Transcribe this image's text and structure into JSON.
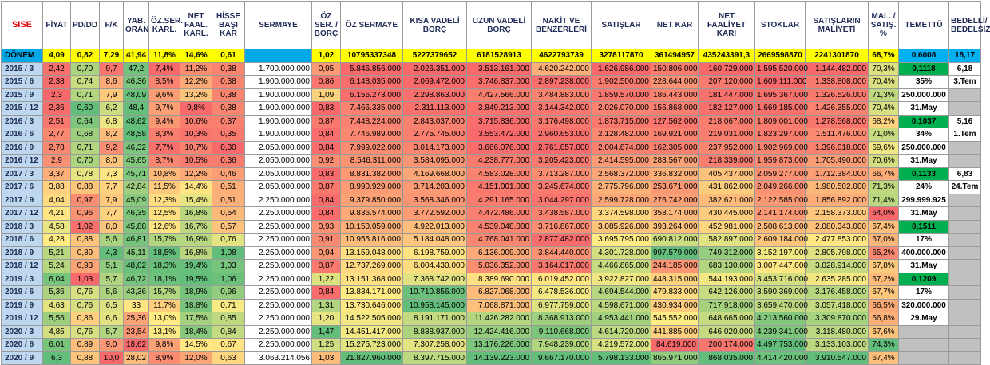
{
  "headers": [
    "SISE",
    "FİYAT",
    "PD/DD",
    "F/K",
    "YAB. ORAN",
    "ÖZ.SER. KARL.",
    "NET FAAL. KARL.",
    "HİSSE BAŞI KAR",
    "SERMAYE",
    "ÖZ SER. / BORÇ",
    "ÖZ SERMAYE",
    "KISA VADELİ BORÇ",
    "UZUN VADELİ BORÇ",
    "NAKİT VE BENZERLERİ",
    "SATIŞLAR",
    "NET KAR",
    "NET FAALİYET KARI",
    "STOKLAR",
    "SATIŞLARIN MALİYETİ",
    "MAL. / SATIŞ. %",
    "TEMETTÜ",
    "BEDELLİ/ BEDELSİZ"
  ],
  "donem": [
    "DÖNEM",
    "4,09",
    "0,82",
    "7,29",
    "41,94",
    "11,8%",
    "14,6%",
    "0,61",
    "",
    "1,02",
    "10795337348",
    "5227379652",
    "6181528913",
    "4622793739",
    "3278117870",
    "361494957",
    "435243391,3",
    "2669598870",
    "2241301870",
    "68,7%",
    "0,6008",
    "18,17"
  ],
  "rows": [
    [
      "2015 / 3",
      "2,42",
      "0,70",
      "9,7",
      "47,2",
      "7,4%",
      "11,2%",
      "0,38",
      "1.700.000.000",
      "0,95",
      "5.846.856.000",
      "2.026.351.000",
      "3.513.161.000",
      "4.620.242.000",
      "1.626.986.000",
      "150.806.000",
      "160.729.000",
      "1.595.520.000",
      "1.144.482.000",
      "70,3%",
      "0,1118",
      "6,18"
    ],
    [
      "2015 / 6",
      "2,38",
      "0,74",
      "8,6",
      "46,36",
      "8,5%",
      "12,2%",
      "0,38",
      "1.900.000.000",
      "0,86",
      "6.148.035.000",
      "2.069.472.000",
      "3.746.837.000",
      "2.897.238.000",
      "1.902.500.000",
      "228.644.000",
      "207.120.000",
      "1.609.111.000",
      "1.338.808.000",
      "70,4%",
      "35%",
      "3.Tem"
    ],
    [
      "2015 / 9",
      "2,3",
      "0,71",
      "7,9",
      "48,09",
      "9,6%",
      "13,2%",
      "0,38",
      "1.900.000.000",
      "1,09",
      "6.156.273.000",
      "2.298.863.000",
      "4.427.566.000",
      "3.484.883.000",
      "1.859.570.000",
      "186.443.000",
      "181.447.000",
      "1.695.367.000",
      "1.326.526.000",
      "71,3%",
      "250.000.000",
      ""
    ],
    [
      "2015 / 12",
      "2,36",
      "0,60",
      "6,2",
      "48,4",
      "9,7%",
      "9,8%",
      "0,38",
      "1.900.000.000",
      "0,83",
      "7.466.335.000",
      "2.311.113.000",
      "3.849.213.000",
      "3.144.342.000",
      "2.026.070.000",
      "156.868.000",
      "182.127.000",
      "1.669.185.000",
      "1.426.355.000",
      "70,4%",
      "31.May",
      ""
    ],
    [
      "2016 / 3",
      "2,51",
      "0,64",
      "6,8",
      "48,62",
      "9,4%",
      "10,6%",
      "0,37",
      "1.900.000.000",
      "0,87",
      "7.448.224.000",
      "2.843.037.000",
      "3.715.836.000",
      "3.176.498.000",
      "1.873.715.000",
      "127.562.000",
      "218.067.000",
      "1.809.001.000",
      "1.278.568.000",
      "68,2%",
      "0,1037",
      "5,16"
    ],
    [
      "2016 / 6",
      "2,77",
      "0,68",
      "8,2",
      "48,58",
      "8,3%",
      "10,3%",
      "0,35",
      "1.900.000.000",
      "0,84",
      "7.746.989.000",
      "2.775.745.000",
      "3.553.472.000",
      "2.960.653.000",
      "2.128.482.000",
      "169.921.000",
      "219.031.000",
      "1.823.297.000",
      "1.511.476.000",
      "71,0%",
      "34%",
      "1.Tem"
    ],
    [
      "2016 / 9",
      "2,78",
      "0,71",
      "9,2",
      "46,32",
      "7,7%",
      "10,7%",
      "0,30",
      "2.050.000.000",
      "0,84",
      "7.999.022.000",
      "3.014.173.000",
      "3.666.076.000",
      "2.761.057.000",
      "2.004.874.000",
      "162.305.000",
      "237.952.000",
      "1.902.969.000",
      "1.396.018.000",
      "69,6%",
      "250.000.000",
      ""
    ],
    [
      "2016 / 12",
      "2,9",
      "0,70",
      "8,0",
      "45,65",
      "8,7%",
      "10,5%",
      "0,36",
      "2.050.000.000",
      "0,92",
      "8.546.311.000",
      "3.584.095.000",
      "4.238.777.000",
      "3.205.423.000",
      "2.414.595.000",
      "283.567.000",
      "218.339.000",
      "1.959.873.000",
      "1.705.490.000",
      "70,6%",
      "31.May",
      ""
    ],
    [
      "2017 / 3",
      "3,37",
      "0,78",
      "7,3",
      "45,71",
      "10,8%",
      "12,2%",
      "0,46",
      "2.050.000.000",
      "0,83",
      "8.831.382.000",
      "4.169.668.000",
      "4.583.028.000",
      "3.713.287.000",
      "2.568.372.000",
      "336.832.000",
      "405.437.000",
      "2.059.277.000",
      "1.712.384.000",
      "66,7%",
      "0,1133",
      "6,83"
    ],
    [
      "2017 / 6",
      "3,88",
      "0,88",
      "7,7",
      "42,84",
      "11,5%",
      "14,4%",
      "0,51",
      "2.050.000.000",
      "0,87",
      "8.990.929.000",
      "3.714.203.000",
      "4.151.001.000",
      "3.245.674.000",
      "2.775.796.000",
      "253.671.000",
      "431.862.000",
      "2.049.266.000",
      "1.980.502.000",
      "71,3%",
      "24%",
      "24.Tem"
    ],
    [
      "2017 / 9",
      "4,04",
      "0,97",
      "7,9",
      "45,09",
      "12,3%",
      "15,4%",
      "0,51",
      "2.250.000.000",
      "0,84",
      "9.379.850.000",
      "3.568.346.000",
      "4.291.165.000",
      "3.044.297.000",
      "2.599.728.000",
      "276.742.000",
      "382.621.000",
      "2.122.585.000",
      "1.856.892.000",
      "71,4%",
      "299.999.925",
      ""
    ],
    [
      "2017 / 12",
      "4,21",
      "0,96",
      "7,7",
      "46,35",
      "12,5%",
      "16,8%",
      "0,54",
      "2.250.000.000",
      "0,84",
      "9.836.574.000",
      "3.772.592.000",
      "4.472.486.000",
      "3.438.587.000",
      "3.374.598.000",
      "358.174.000",
      "430.445.000",
      "2.141.174.000",
      "2.158.373.000",
      "64,0%",
      "31.May",
      ""
    ],
    [
      "2018 / 3",
      "4,58",
      "1,02",
      "8,0",
      "45,88",
      "12,6%",
      "16,7%",
      "0,57",
      "2.250.000.000",
      "0,93",
      "10.150.059.000",
      "4.922.013.000",
      "4.539.048.000",
      "3.716.867.000",
      "3.085.926.000",
      "393.264.000",
      "452.981.000",
      "2.508.613.000",
      "2.080.343.000",
      "67,4%",
      "0,1511",
      ""
    ],
    [
      "2018 / 6",
      "4,28",
      "0,88",
      "5,6",
      "46,81",
      "15,7%",
      "16,9%",
      "0,76",
      "2.250.000.000",
      "0,91",
      "10.955.816.000",
      "5.184.048.000",
      "4.768.041.000",
      "2.877.482.000",
      "3.695.795.000",
      "690.812.000",
      "582.897.000",
      "2.609.184.000",
      "2.477.853.000",
      "67,0%",
      "17%",
      ""
    ],
    [
      "2018 / 9",
      "5,21",
      "0,89",
      "4,3",
      "45,11",
      "18,5%",
      "16,8%",
      "1,08",
      "2.250.000.000",
      "0,94",
      "13.159.048.000",
      "6.198.759.000",
      "6.136.009.000",
      "3.844.440.000",
      "4.301.728.000",
      "997.579.000",
      "749.312.000",
      "3.152.197.000",
      "2.805.798.000",
      "65,2%",
      "400.000.000",
      ""
    ],
    [
      "2018 / 12",
      "5,24",
      "0,93",
      "5,1",
      "48,02",
      "18,3%",
      "19,4%",
      "1,03",
      "2.250.000.000",
      "0,87",
      "12.737.269.000",
      "6.004.430.000",
      "5.036.352.000",
      "3.164.017.000",
      "4.466.865.000",
      "244.185.000",
      "683.130.000",
      "3.007.447.000",
      "3.028.914.000",
      "67,8%",
      "31.May",
      ""
    ],
    [
      "2019 / 3",
      "6,04",
      "1,03",
      "5,7",
      "46,72",
      "18,1%",
      "19,5%",
      "1,06",
      "2.250.000.000",
      "1,22",
      "13.151.368.000",
      "7.368.742.000",
      "8.389.690.000",
      "6.019.452.000",
      "3.922.827.000",
      "448.315.000",
      "544.193.000",
      "3.453.716.000",
      "2.635.285.000",
      "67,2%",
      "0,1209",
      ""
    ],
    [
      "2019 / 6",
      "5,36",
      "0,76",
      "5,6",
      "43,36",
      "15,7%",
      "18,9%",
      "0,96",
      "2.250.000.000",
      "0,84",
      "13.834.171.000",
      "10.710.856.000",
      "6.827.068.000",
      "6.478.536.000",
      "4.694.544.000",
      "479.833.000",
      "642.126.000",
      "3.590.369.000",
      "3.176.458.000",
      "67,7%",
      "17%",
      ""
    ],
    [
      "2019 / 9",
      "4,63",
      "0,76",
      "6,5",
      "33",
      "11,7%",
      "18,8%",
      "0,71",
      "2.250.000.000",
      "1,31",
      "13.730.646.000",
      "10.958.145.000",
      "7.068.871.000",
      "6.977.759.000",
      "4.598.671.000",
      "430.934.000",
      "717.918.000",
      "3.659.470.000",
      "3.057.418.000",
      "66,5%",
      "320.000.000",
      ""
    ],
    [
      "2019 / 12",
      "5,56",
      "0,86",
      "6,6",
      "25,36",
      "13,0%",
      "17,5%",
      "0,85",
      "2.250.000.000",
      "1,20",
      "14.522.505.000",
      "8.191.171.000",
      "11.426.282.000",
      "8.368.913.000",
      "4.953.441.000",
      "545.552.000",
      "648.665.000",
      "4.213.560.000",
      "3.309.870.000",
      "66,8%",
      "29.May",
      ""
    ],
    [
      "2020 / 3",
      "4,85",
      "0,76",
      "5,7",
      "23,54",
      "13,1%",
      "18,4%",
      "0,84",
      "2.250.000.000",
      "1,47",
      "14.451.417.000",
      "8.838.937.000",
      "12.424.416.000",
      "9.110.668.000",
      "4.614.720.000",
      "441.885.000",
      "646.020.000",
      "4.239.341.000",
      "3.118.480.000",
      "67,6%",
      "",
      ""
    ],
    [
      "2020 / 6",
      "6,01",
      "0,89",
      "9,0",
      "18,62",
      "9,8%",
      "14,5%",
      "0,67",
      "2.250.000.000",
      "1,25",
      "15.275.723.000",
      "7.307.258.000",
      "13.176.226.000",
      "7.948.239.000",
      "4.219.572.000",
      "84.619.000",
      "200.174.000",
      "4.497.753.000",
      "3.133.103.000",
      "74,3%",
      "",
      ""
    ],
    [
      "2020 / 9",
      "6,3",
      "0,88",
      "10,0",
      "28,02",
      "8,9%",
      "12,0%",
      "0,63",
      "3.063.214.056",
      "1,03",
      "21.827.960.000",
      "8.397.715.000",
      "14.139.223.000",
      "9.667.170.000",
      "5.798.133.000",
      "865.971.000",
      "868.035.000",
      "4.414.420.000",
      "3.910.547.000",
      "67,4%",
      "",
      ""
    ]
  ]
}
